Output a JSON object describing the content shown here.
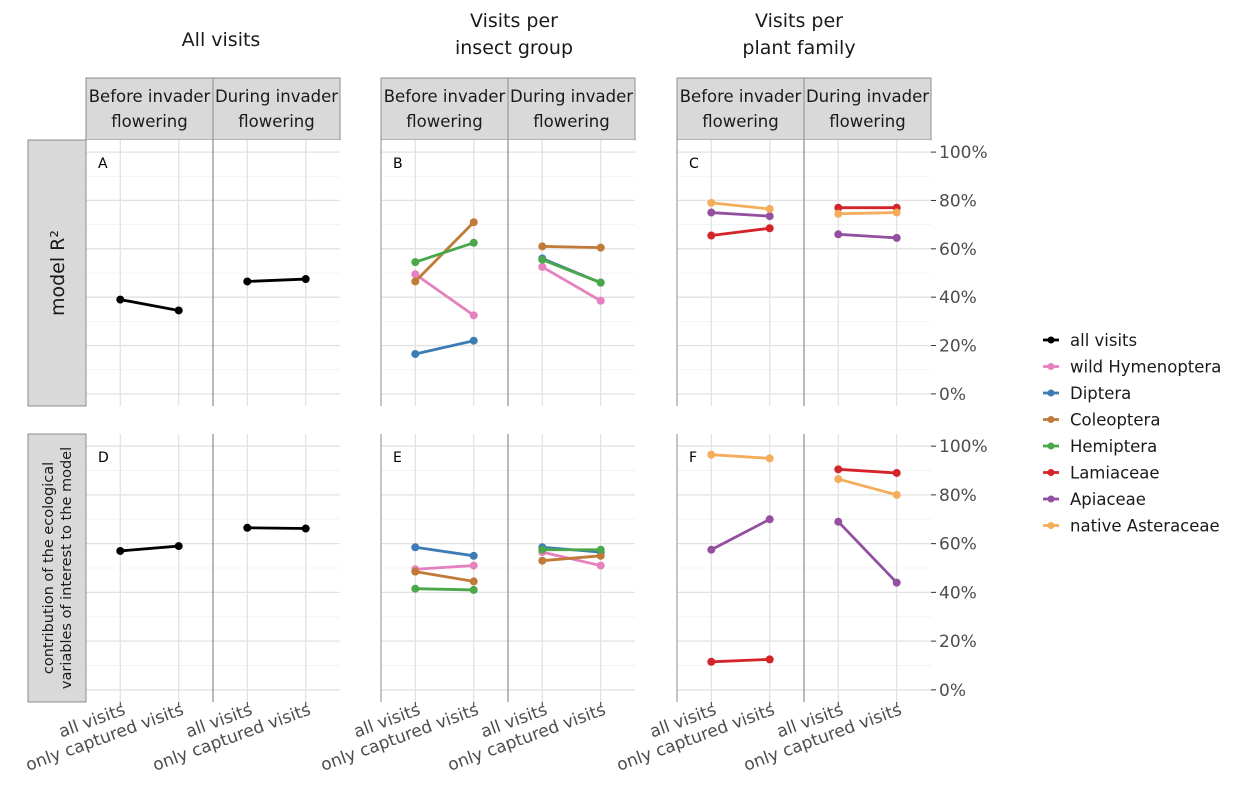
{
  "column_titles": [
    [
      "All visits"
    ],
    [
      "Visits per",
      "insect group"
    ],
    [
      "Visits per",
      "plant family"
    ]
  ],
  "strip_labels": [
    [
      "Before invader",
      "flowering"
    ],
    [
      "During invader",
      "flowering"
    ]
  ],
  "row_labels": [
    [
      "model R²"
    ],
    [
      "contribution of the ecological",
      "variables of interest to the model"
    ]
  ],
  "y_tick_labels": [
    "0%",
    "20%",
    "40%",
    "60%",
    "80%",
    "100%"
  ],
  "x_tick_labels": [
    "all visits",
    "only captured visits"
  ],
  "legend": [
    {
      "label": "all visits",
      "color": "#000000"
    },
    {
      "label": "wild Hymenoptera",
      "color": "#e780bf"
    },
    {
      "label": "Diptera",
      "color": "#3d7cb5"
    },
    {
      "label": "Coleoptera",
      "color": "#c17a37"
    },
    {
      "label": "Hemiptera",
      "color": "#4aa84a"
    },
    {
      "label": "Lamiaceae",
      "color": "#d4242a"
    },
    {
      "label": "Apiaceae",
      "color": "#9350a0"
    },
    {
      "label": "native Asteraceae",
      "color": "#f4ad5a"
    }
  ],
  "chart_data": {
    "type": "line",
    "y_axis": {
      "ylim": [
        -0.05,
        1.05
      ],
      "ticks": [
        0,
        0.2,
        0.4,
        0.6,
        0.8,
        1.0
      ],
      "position": "right"
    },
    "x_categories": [
      "all visits",
      "only captured visits"
    ],
    "panels": [
      {
        "label": "A",
        "series": [
          {
            "name": "all visits",
            "before": [
              0.39,
              0.345
            ],
            "during": [
              0.465,
              0.475
            ]
          }
        ]
      },
      {
        "label": "B",
        "series": [
          {
            "name": "wild Hymenoptera",
            "before": [
              0.495,
              0.325
            ],
            "during": [
              0.525,
              0.385
            ]
          },
          {
            "name": "Diptera",
            "before": [
              0.165,
              0.22
            ],
            "during": [
              0.56,
              0.46
            ]
          },
          {
            "name": "Coleoptera",
            "before": [
              0.465,
              0.71
            ],
            "during": [
              0.61,
              0.605
            ]
          },
          {
            "name": "Hemiptera",
            "before": [
              0.545,
              0.625
            ],
            "during": [
              0.555,
              0.46
            ]
          }
        ]
      },
      {
        "label": "C",
        "series": [
          {
            "name": "Lamiaceae",
            "before": [
              0.655,
              0.685
            ],
            "during": [
              0.77,
              0.77
            ]
          },
          {
            "name": "Apiaceae",
            "before": [
              0.75,
              0.735
            ],
            "during": [
              0.66,
              0.645
            ]
          },
          {
            "name": "native Asteraceae",
            "before": [
              0.79,
              0.765
            ],
            "during": [
              0.745,
              0.75
            ]
          }
        ]
      },
      {
        "label": "D",
        "series": [
          {
            "name": "all visits",
            "before": [
              0.57,
              0.59
            ],
            "during": [
              0.665,
              0.662
            ]
          }
        ]
      },
      {
        "label": "E",
        "series": [
          {
            "name": "wild Hymenoptera",
            "before": [
              0.495,
              0.51
            ],
            "during": [
              0.565,
              0.51
            ]
          },
          {
            "name": "Diptera",
            "before": [
              0.585,
              0.55
            ],
            "during": [
              0.585,
              0.565
            ]
          },
          {
            "name": "Coleoptera",
            "before": [
              0.485,
              0.445
            ],
            "during": [
              0.53,
              0.55
            ]
          },
          {
            "name": "Hemiptera",
            "before": [
              0.415,
              0.41
            ],
            "during": [
              0.575,
              0.575
            ]
          }
        ]
      },
      {
        "label": "F",
        "series": [
          {
            "name": "Lamiaceae",
            "before": [
              0.115,
              0.125
            ],
            "during": [
              0.905,
              0.89
            ]
          },
          {
            "name": "Apiaceae",
            "before": [
              0.575,
              0.7
            ],
            "during": [
              0.69,
              0.44
            ]
          },
          {
            "name": "native Asteraceae",
            "before": [
              0.965,
              0.95
            ],
            "during": [
              0.865,
              0.8
            ]
          }
        ]
      }
    ]
  }
}
